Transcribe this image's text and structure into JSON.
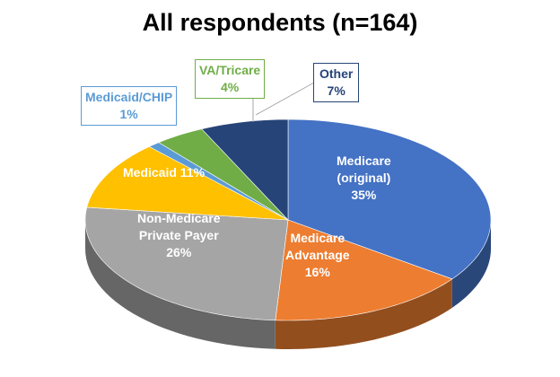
{
  "chart_data": {
    "type": "pie",
    "style": "3d",
    "title": "All respondents (n=164)",
    "start": "top",
    "direction": "clockwise",
    "slices": [
      {
        "label_lines": [
          "Medicare",
          "(original)"
        ],
        "value": 35,
        "value_label": "35%",
        "color": "#4472C4",
        "label_color": "#FFFFFF"
      },
      {
        "label_lines": [
          "Medicare",
          "Advantage"
        ],
        "value": 16,
        "value_label": "16%",
        "color": "#ED7D31",
        "label_color": "#FFFFFF"
      },
      {
        "label_lines": [
          "Non-Medicare",
          "Private Payer"
        ],
        "value": 26,
        "value_label": "26%",
        "color": "#A5A5A5",
        "label_color": "#FFFFFF"
      },
      {
        "label_lines": [
          "Medicaid"
        ],
        "value": 11,
        "value_label": "11%",
        "color": "#FFC000",
        "label_color": "#FFFFFF"
      },
      {
        "label_lines": [
          "Medicaid/CHIP"
        ],
        "value": 1,
        "value_label": "1%",
        "color": "#5B9BD5",
        "label_color": "#5B9BD5"
      },
      {
        "label_lines": [
          "VA/Tricare"
        ],
        "value": 4,
        "value_label": "4%",
        "color": "#70AD47",
        "label_color": "#70AD47"
      },
      {
        "label_lines": [
          "Other"
        ],
        "value": 7,
        "value_label": "7%",
        "color": "#264478",
        "label_color": "#264478"
      }
    ]
  }
}
